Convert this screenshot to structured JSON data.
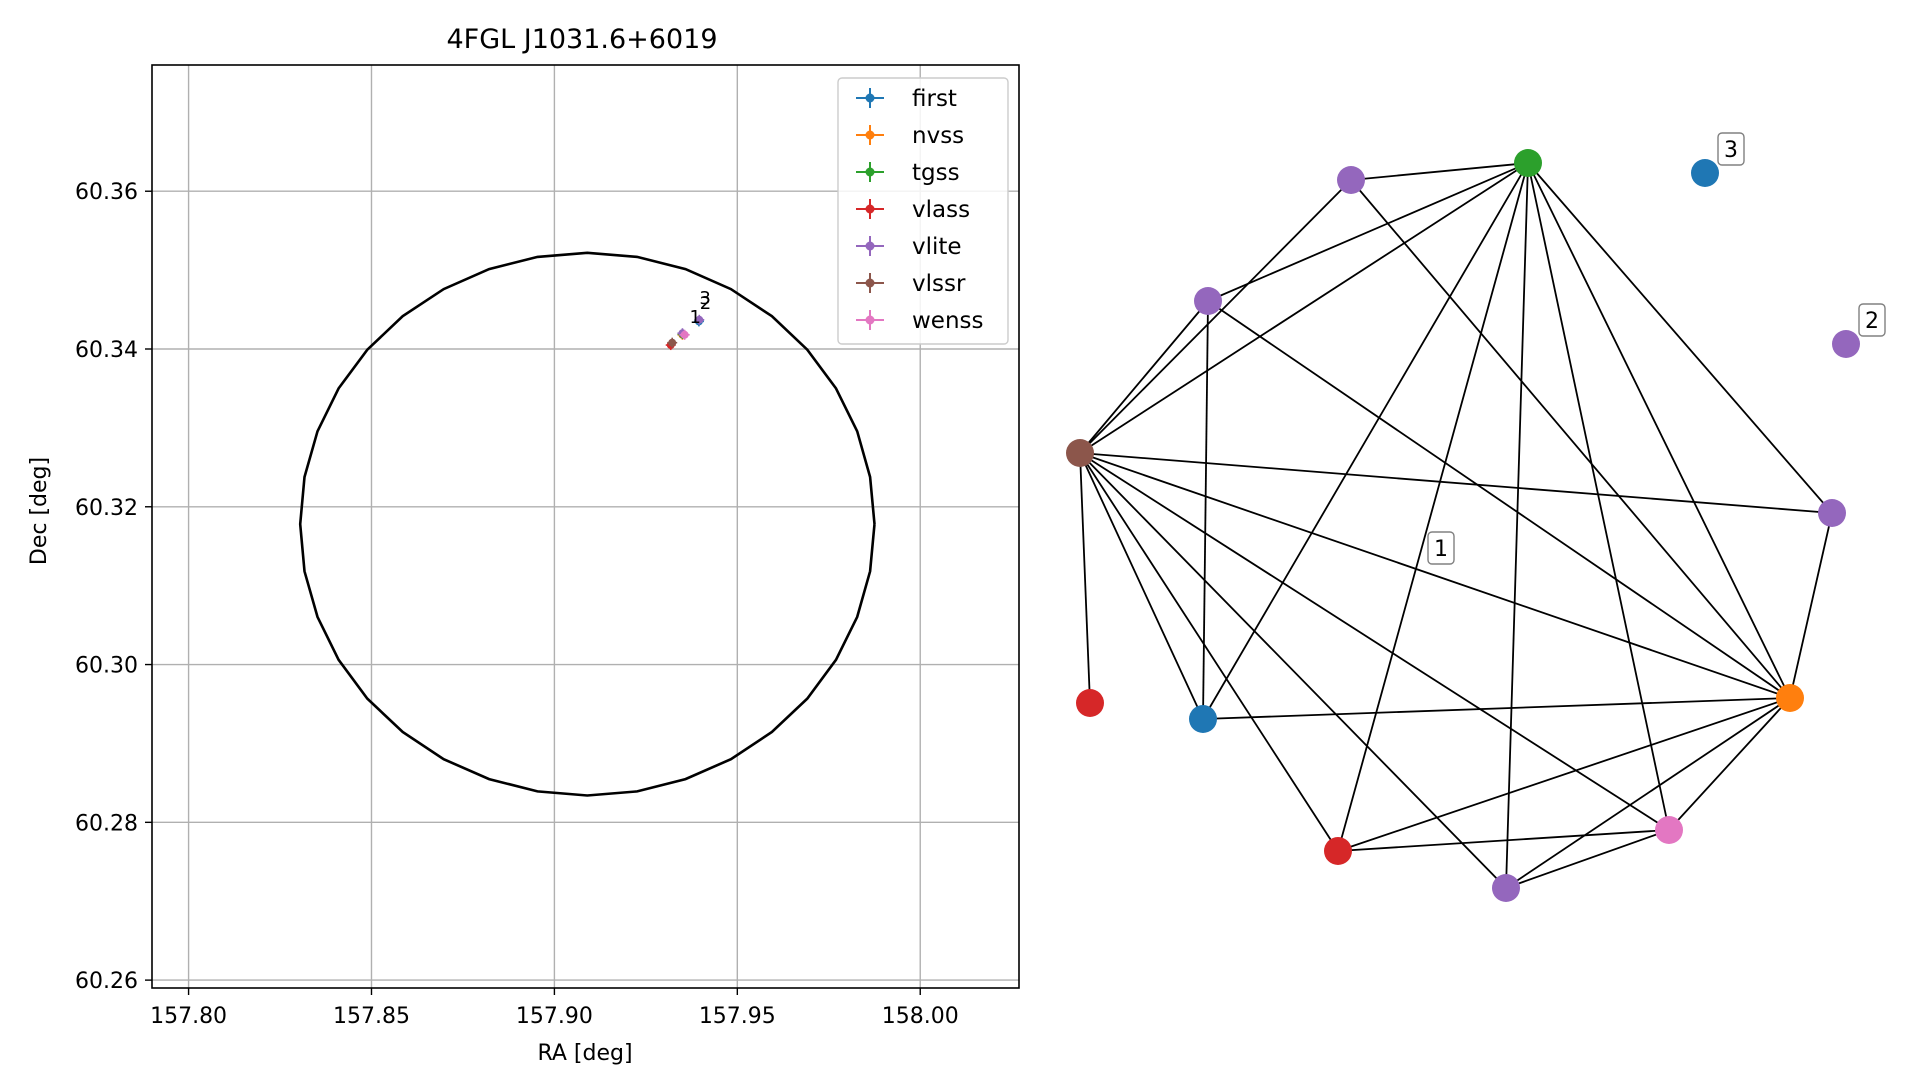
{
  "chart_data": [
    {
      "type": "scatter",
      "title": "4FGL J1031.6+6019",
      "xlabel": "RA [deg]",
      "ylabel": "Dec [deg]",
      "xlim": [
        157.79,
        158.027
      ],
      "ylim": [
        60.259,
        60.376
      ],
      "xticks": [
        157.8,
        157.85,
        157.9,
        157.95,
        158.0
      ],
      "xtick_labels": [
        "157.80",
        "157.85",
        "157.90",
        "157.95",
        "158.00"
      ],
      "yticks": [
        60.26,
        60.28,
        60.3,
        60.32,
        60.34,
        60.36
      ],
      "ytick_labels": [
        "60.26",
        "60.28",
        "60.30",
        "60.32",
        "60.34",
        "60.36"
      ],
      "grid": true,
      "legend_position": "upper right",
      "circle": {
        "center_ra": 157.909,
        "center_dec": 60.3178,
        "radius_ra": 0.0785,
        "radius_dec": 0.0344
      },
      "series": [
        {
          "name": "first",
          "color": "#1f77b4",
          "points": [
            {
              "ra": 157.9395,
              "dec": 60.3435
            }
          ]
        },
        {
          "name": "nvss",
          "color": "#ff7f0e",
          "points": [
            {
              "ra": 157.935,
              "dec": 60.3418
            }
          ]
        },
        {
          "name": "tgss",
          "color": "#2ca02c",
          "points": [
            {
              "ra": 157.935,
              "dec": 60.3419
            }
          ]
        },
        {
          "name": "vlass",
          "color": "#d62728",
          "points": [
            {
              "ra": 157.9318,
              "dec": 60.3405
            }
          ]
        },
        {
          "name": "vlite",
          "color": "#9467bd",
          "points": [
            {
              "ra": 157.9396,
              "dec": 60.3437
            },
            {
              "ra": 157.935,
              "dec": 60.342
            }
          ]
        },
        {
          "name": "vlssr",
          "color": "#8c564b",
          "points": [
            {
              "ra": 157.9322,
              "dec": 60.3408
            }
          ]
        },
        {
          "name": "wenss",
          "color": "#e377c2",
          "points": [
            {
              "ra": 157.9356,
              "dec": 60.3418
            }
          ]
        }
      ],
      "annotations": [
        {
          "text": "1",
          "ra": 157.9385,
          "dec": 60.3433
        },
        {
          "text": "2",
          "ra": 157.9413,
          "dec": 60.3451
        },
        {
          "text": "3",
          "ra": 157.9412,
          "dec": 60.3457
        }
      ]
    },
    {
      "type": "network",
      "nodes": [
        {
          "id": "tgss",
          "color": "#2ca02c"
        },
        {
          "id": "vlite_a",
          "color": "#9467bd"
        },
        {
          "id": "first_iso",
          "color": "#1f77b4",
          "label": "3"
        },
        {
          "id": "vlite_b",
          "color": "#9467bd"
        },
        {
          "id": "vlite_iso",
          "color": "#9467bd",
          "label": "2"
        },
        {
          "id": "vlssr",
          "color": "#8c564b"
        },
        {
          "id": "vlite_c",
          "color": "#9467bd"
        },
        {
          "id": "vlass_iso",
          "color": "#d62728"
        },
        {
          "id": "first",
          "color": "#1f77b4"
        },
        {
          "id": "nvss",
          "color": "#ff7f0e"
        },
        {
          "id": "wenss",
          "color": "#e377c2"
        },
        {
          "id": "vlass",
          "color": "#d62728"
        },
        {
          "id": "vlite_d",
          "color": "#9467bd"
        }
      ],
      "edges": [
        [
          "tgss",
          "vlite_a"
        ],
        [
          "tgss",
          "vlite_b"
        ],
        [
          "tgss",
          "vlssr"
        ],
        [
          "tgss",
          "first"
        ],
        [
          "tgss",
          "vlass"
        ],
        [
          "tgss",
          "vlite_d"
        ],
        [
          "tgss",
          "wenss"
        ],
        [
          "tgss",
          "nvss"
        ],
        [
          "tgss",
          "vlite_c"
        ],
        [
          "vlite_a",
          "vlssr"
        ],
        [
          "vlite_a",
          "nvss"
        ],
        [
          "vlite_b",
          "vlssr"
        ],
        [
          "vlite_b",
          "first"
        ],
        [
          "vlite_b",
          "nvss"
        ],
        [
          "vlssr",
          "vlass_iso"
        ],
        [
          "vlssr",
          "first"
        ],
        [
          "vlssr",
          "vlass"
        ],
        [
          "vlssr",
          "vlite_d"
        ],
        [
          "vlssr",
          "wenss"
        ],
        [
          "vlssr",
          "nvss"
        ],
        [
          "vlssr",
          "vlite_c"
        ],
        [
          "vlite_c",
          "nvss"
        ],
        [
          "first",
          "nvss"
        ],
        [
          "vlass",
          "nvss"
        ],
        [
          "vlass",
          "wenss"
        ],
        [
          "vlite_d",
          "nvss"
        ],
        [
          "vlite_d",
          "wenss"
        ],
        [
          "wenss",
          "nvss"
        ]
      ],
      "floating_labels": [
        {
          "text": "1"
        }
      ]
    }
  ]
}
